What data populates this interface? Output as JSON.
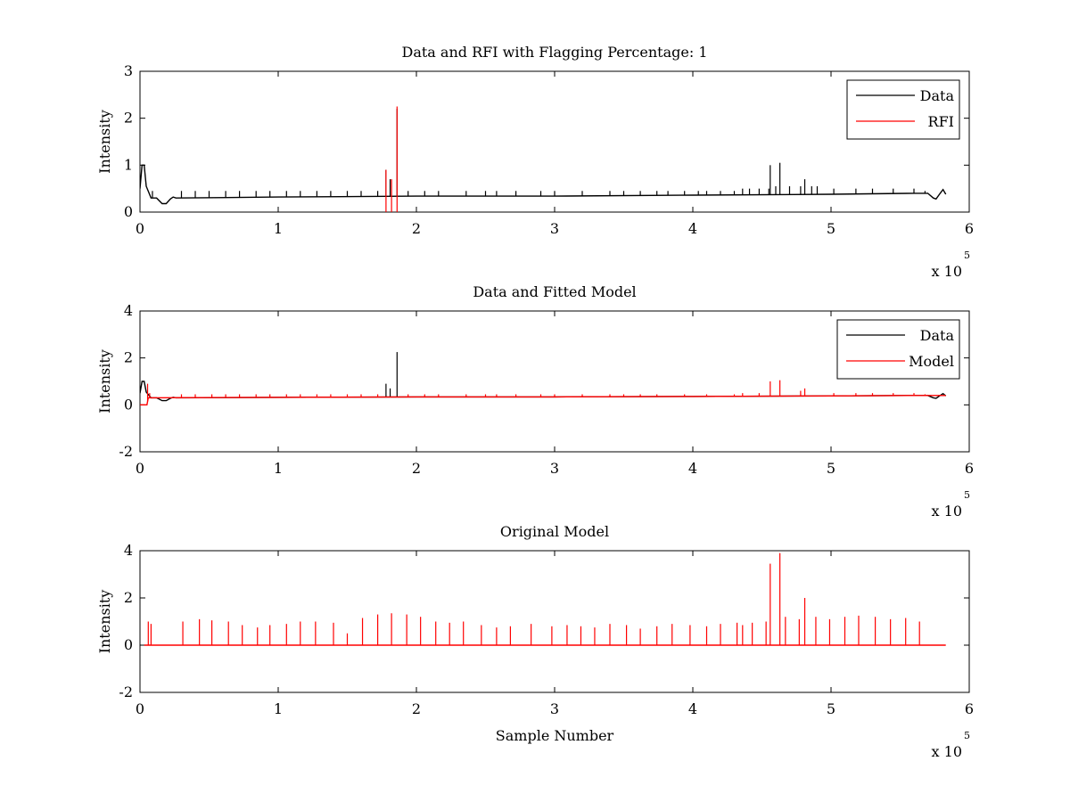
{
  "figure": {
    "background": "#ffffff"
  },
  "colors": {
    "data": "#000000",
    "rfi": "#ff0000",
    "model": "#ff0000"
  },
  "chart_data": [
    {
      "type": "line",
      "title": "Data and RFI with Flagging Percentage: 1",
      "xlabel": "",
      "ylabel": "Intensity",
      "xlim": [
        0,
        600000
      ],
      "ylim": [
        0,
        3
      ],
      "xticks": [
        0,
        1,
        2,
        3,
        4,
        5,
        6
      ],
      "yticks": [
        0,
        1,
        2,
        3
      ],
      "x_exponent": {
        "base": "x 10",
        "exp": "5"
      },
      "legend": {
        "position": "top-right",
        "entries": [
          "Data",
          "RFI"
        ]
      },
      "series": [
        {
          "name": "Data",
          "color": "#000000",
          "baseline": [
            [
              0,
              0.5
            ],
            [
              1500,
              1.0
            ],
            [
              3000,
              1.0
            ],
            [
              4500,
              0.55
            ],
            [
              8000,
              0.3
            ],
            [
              12000,
              0.3
            ],
            [
              16000,
              0.18
            ],
            [
              19000,
              0.18
            ],
            [
              22000,
              0.28
            ],
            [
              24000,
              0.32
            ],
            [
              26000,
              0.3
            ],
            [
              100000,
              0.32
            ],
            [
              200000,
              0.34
            ],
            [
              300000,
              0.34
            ],
            [
              400000,
              0.36
            ],
            [
              500000,
              0.38
            ],
            [
              560000,
              0.4
            ],
            [
              570000,
              0.4
            ],
            [
              574000,
              0.3
            ],
            [
              576000,
              0.28
            ],
            [
              579000,
              0.4
            ],
            [
              581000,
              0.48
            ],
            [
              583000,
              0.38
            ]
          ],
          "spikes": [
            [
              6000,
              0.45
            ],
            [
              9000,
              0.45
            ],
            [
              30000,
              0.45
            ],
            [
              40000,
              0.45
            ],
            [
              50000,
              0.45
            ],
            [
              62000,
              0.45
            ],
            [
              72000,
              0.45
            ],
            [
              84000,
              0.45
            ],
            [
              94000,
              0.45
            ],
            [
              106000,
              0.45
            ],
            [
              116000,
              0.45
            ],
            [
              128000,
              0.45
            ],
            [
              138000,
              0.45
            ],
            [
              150000,
              0.45
            ],
            [
              160000,
              0.45
            ],
            [
              172000,
              0.45
            ],
            [
              178000,
              0.9
            ],
            [
              181000,
              0.7
            ],
            [
              186000,
              2.2
            ],
            [
              194000,
              0.45
            ],
            [
              206000,
              0.45
            ],
            [
              216000,
              0.45
            ],
            [
              236000,
              0.45
            ],
            [
              250000,
              0.45
            ],
            [
              258000,
              0.45
            ],
            [
              272000,
              0.45
            ],
            [
              290000,
              0.45
            ],
            [
              300000,
              0.45
            ],
            [
              320000,
              0.45
            ],
            [
              340000,
              0.45
            ],
            [
              350000,
              0.45
            ],
            [
              362000,
              0.45
            ],
            [
              374000,
              0.45
            ],
            [
              382000,
              0.45
            ],
            [
              394000,
              0.45
            ],
            [
              404000,
              0.45
            ],
            [
              410000,
              0.45
            ],
            [
              420000,
              0.45
            ],
            [
              430000,
              0.45
            ],
            [
              436000,
              0.5
            ],
            [
              441000,
              0.5
            ],
            [
              448000,
              0.5
            ],
            [
              455000,
              0.5
            ],
            [
              456000,
              1.0
            ],
            [
              460000,
              0.55
            ],
            [
              463000,
              1.05
            ],
            [
              470000,
              0.55
            ],
            [
              478000,
              0.55
            ],
            [
              481000,
              0.7
            ],
            [
              486000,
              0.55
            ],
            [
              490000,
              0.55
            ],
            [
              502000,
              0.5
            ],
            [
              518000,
              0.5
            ],
            [
              530000,
              0.5
            ],
            [
              545000,
              0.5
            ],
            [
              560000,
              0.5
            ],
            [
              568000,
              0.45
            ]
          ]
        },
        {
          "name": "RFI",
          "color": "#ff0000",
          "spikes": [
            [
              178000,
              0.9
            ],
            [
              182000,
              0.7
            ],
            [
              186000,
              2.25
            ]
          ]
        }
      ]
    },
    {
      "type": "line",
      "title": "Data and Fitted Model",
      "xlabel": "",
      "ylabel": "Intensity",
      "xlim": [
        0,
        600000
      ],
      "ylim": [
        -2,
        4
      ],
      "xticks": [
        0,
        1,
        2,
        3,
        4,
        5,
        6
      ],
      "yticks": [
        -2,
        0,
        2,
        4
      ],
      "x_exponent": {
        "base": "x 10",
        "exp": "5"
      },
      "legend": {
        "position": "top-right",
        "entries": [
          "Data",
          "Model"
        ]
      },
      "series": [
        {
          "name": "Data",
          "color": "#000000",
          "baseline": [
            [
              0,
              0.5
            ],
            [
              1500,
              1.0
            ],
            [
              3000,
              1.0
            ],
            [
              4500,
              0.55
            ],
            [
              8000,
              0.3
            ],
            [
              12000,
              0.3
            ],
            [
              16000,
              0.18
            ],
            [
              19000,
              0.18
            ],
            [
              22000,
              0.28
            ],
            [
              24000,
              0.32
            ],
            [
              26000,
              0.3
            ],
            [
              100000,
              0.32
            ],
            [
              200000,
              0.34
            ],
            [
              300000,
              0.34
            ],
            [
              400000,
              0.36
            ],
            [
              500000,
              0.38
            ],
            [
              560000,
              0.4
            ],
            [
              570000,
              0.4
            ],
            [
              574000,
              0.3
            ],
            [
              576000,
              0.28
            ],
            [
              579000,
              0.4
            ],
            [
              581000,
              0.48
            ],
            [
              583000,
              0.38
            ]
          ],
          "spikes": [
            [
              178000,
              0.9
            ],
            [
              181000,
              0.7
            ],
            [
              186000,
              2.25
            ]
          ]
        },
        {
          "name": "Model",
          "color": "#ff0000",
          "baseline": [
            [
              0,
              0.0
            ],
            [
              5000,
              0.0
            ],
            [
              6000,
              0.3
            ],
            [
              100000,
              0.32
            ],
            [
              200000,
              0.34
            ],
            [
              300000,
              0.34
            ],
            [
              400000,
              0.36
            ],
            [
              500000,
              0.38
            ],
            [
              560000,
              0.4
            ],
            [
              583000,
              0.4
            ]
          ],
          "spikes": [
            [
              5500,
              0.9
            ],
            [
              7000,
              0.5
            ],
            [
              30000,
              0.45
            ],
            [
              40000,
              0.45
            ],
            [
              52000,
              0.45
            ],
            [
              62000,
              0.45
            ],
            [
              72000,
              0.45
            ],
            [
              84000,
              0.45
            ],
            [
              94000,
              0.45
            ],
            [
              106000,
              0.45
            ],
            [
              116000,
              0.45
            ],
            [
              128000,
              0.45
            ],
            [
              138000,
              0.45
            ],
            [
              150000,
              0.45
            ],
            [
              160000,
              0.45
            ],
            [
              172000,
              0.45
            ],
            [
              194000,
              0.45
            ],
            [
              206000,
              0.45
            ],
            [
              216000,
              0.45
            ],
            [
              236000,
              0.45
            ],
            [
              250000,
              0.45
            ],
            [
              258000,
              0.45
            ],
            [
              272000,
              0.45
            ],
            [
              290000,
              0.45
            ],
            [
              300000,
              0.45
            ],
            [
              320000,
              0.45
            ],
            [
              340000,
              0.45
            ],
            [
              350000,
              0.45
            ],
            [
              362000,
              0.45
            ],
            [
              374000,
              0.45
            ],
            [
              394000,
              0.45
            ],
            [
              410000,
              0.45
            ],
            [
              430000,
              0.45
            ],
            [
              436000,
              0.5
            ],
            [
              448000,
              0.5
            ],
            [
              456000,
              1.0
            ],
            [
              463000,
              1.05
            ],
            [
              478000,
              0.6
            ],
            [
              481000,
              0.7
            ],
            [
              502000,
              0.5
            ],
            [
              518000,
              0.5
            ],
            [
              530000,
              0.5
            ],
            [
              545000,
              0.5
            ],
            [
              560000,
              0.5
            ],
            [
              568000,
              0.45
            ]
          ]
        }
      ]
    },
    {
      "type": "line",
      "title": "Original Model",
      "xlabel": "Sample Number",
      "ylabel": "Intensity",
      "xlim": [
        0,
        600000
      ],
      "ylim": [
        -2,
        4
      ],
      "xticks": [
        0,
        1,
        2,
        3,
        4,
        5,
        6
      ],
      "yticks": [
        -2,
        0,
        2,
        4
      ],
      "x_exponent": {
        "base": "x 10",
        "exp": "5"
      },
      "series": [
        {
          "name": "Original Model",
          "color": "#ff0000",
          "baseline": [
            [
              3000,
              0.0
            ],
            [
              583000,
              0.0
            ]
          ],
          "spikes": [
            [
              6000,
              1.0
            ],
            [
              8000,
              0.9
            ],
            [
              31000,
              1.0
            ],
            [
              43000,
              1.1
            ],
            [
              52000,
              1.05
            ],
            [
              64000,
              1.0
            ],
            [
              74000,
              0.85
            ],
            [
              85000,
              0.75
            ],
            [
              94000,
              0.85
            ],
            [
              106000,
              0.9
            ],
            [
              116000,
              1.0
            ],
            [
              127000,
              1.0
            ],
            [
              140000,
              0.95
            ],
            [
              150000,
              0.5
            ],
            [
              161000,
              1.15
            ],
            [
              172000,
              1.3
            ],
            [
              182000,
              1.35
            ],
            [
              193000,
              1.3
            ],
            [
              203000,
              1.2
            ],
            [
              214000,
              1.0
            ],
            [
              224000,
              0.95
            ],
            [
              234000,
              1.0
            ],
            [
              247000,
              0.85
            ],
            [
              258000,
              0.75
            ],
            [
              268000,
              0.8
            ],
            [
              283000,
              0.9
            ],
            [
              298000,
              0.8
            ],
            [
              309000,
              0.85
            ],
            [
              319000,
              0.8
            ],
            [
              329000,
              0.75
            ],
            [
              340000,
              0.9
            ],
            [
              352000,
              0.85
            ],
            [
              362000,
              0.7
            ],
            [
              374000,
              0.8
            ],
            [
              385000,
              0.9
            ],
            [
              398000,
              0.85
            ],
            [
              410000,
              0.8
            ],
            [
              420000,
              0.9
            ],
            [
              432000,
              0.95
            ],
            [
              436000,
              0.85
            ],
            [
              443000,
              0.95
            ],
            [
              453000,
              1.0
            ],
            [
              456000,
              3.45
            ],
            [
              463000,
              3.9
            ],
            [
              467000,
              1.2
            ],
            [
              477000,
              1.1
            ],
            [
              481000,
              2.0
            ],
            [
              489000,
              1.2
            ],
            [
              499000,
              1.1
            ],
            [
              510000,
              1.2
            ],
            [
              520000,
              1.25
            ],
            [
              532000,
              1.2
            ],
            [
              543000,
              1.1
            ],
            [
              554000,
              1.15
            ],
            [
              564000,
              1.0
            ]
          ]
        }
      ]
    }
  ]
}
